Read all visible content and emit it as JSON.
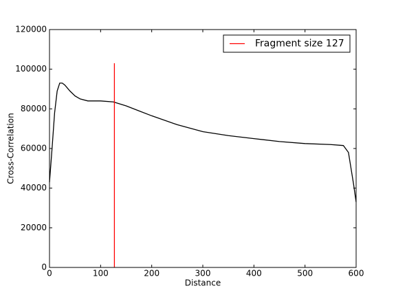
{
  "chart_data": {
    "type": "line",
    "xlabel": "Distance",
    "ylabel": "Cross-Correlation",
    "xlim": [
      0,
      600
    ],
    "ylim": [
      0,
      120000
    ],
    "xticks": [
      0,
      100,
      200,
      300,
      400,
      500,
      600
    ],
    "yticks": [
      0,
      20000,
      40000,
      60000,
      80000,
      100000,
      120000
    ],
    "legend": "upper right",
    "series": [
      {
        "color": "#000000",
        "x": [
          0,
          5,
          10,
          15,
          20,
          25,
          30,
          40,
          50,
          60,
          75,
          100,
          125,
          150,
          175,
          200,
          250,
          300,
          350,
          400,
          450,
          500,
          550,
          575,
          585,
          590,
          595,
          600
        ],
        "values": [
          43000,
          60000,
          78000,
          89000,
          93000,
          93000,
          92000,
          89000,
          86500,
          85000,
          84000,
          84000,
          83500,
          81500,
          79000,
          76500,
          72000,
          68500,
          66500,
          65000,
          63500,
          62500,
          62000,
          61500,
          58000,
          50000,
          42000,
          33000
        ]
      },
      {
        "name": "Fragment size 127",
        "color": "#ff0000",
        "x": [
          127,
          127
        ],
        "values": [
          0,
          103000
        ]
      }
    ]
  }
}
